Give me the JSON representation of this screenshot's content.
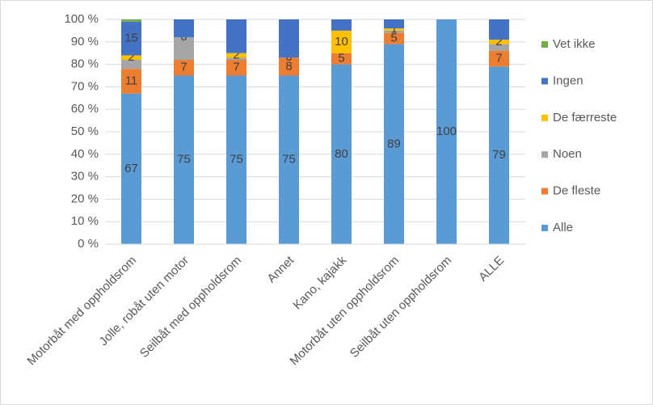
{
  "chart_data": {
    "type": "stacked_bar",
    "categories": [
      "Motorbåt med oppholdsrom",
      "Jolle, robåt uten motor",
      "Seilbåt med oppholdsrom",
      "Annet",
      "Kano, kajakk",
      "Motorbåt uten oppholdsrom",
      "Seilbåt uten oppholdsrom",
      "ALLE"
    ],
    "series": [
      {
        "name": "Alle",
        "color": "#5b9bd5",
        "values": [
          67,
          75,
          75,
          75,
          80,
          89,
          100,
          79
        ],
        "value_labels": [
          "67",
          "75",
          "75",
          "75",
          "80",
          "89",
          "100",
          "79"
        ]
      },
      {
        "name": "De fleste",
        "color": "#ed7d31",
        "values": [
          11,
          7,
          7,
          8,
          5,
          5,
          0,
          7
        ],
        "value_labels": [
          "11",
          "7",
          "7",
          "8",
          "5",
          "5",
          null,
          "7"
        ]
      },
      {
        "name": "Noen",
        "color": "#a5a5a5",
        "values": [
          4,
          10,
          1,
          0,
          0,
          1,
          0,
          3
        ],
        "value_labels": [
          null,
          null,
          null,
          null,
          null,
          null,
          null,
          null
        ]
      },
      {
        "name": "De færreste",
        "color": "#ffc000",
        "values": [
          2,
          0,
          2,
          0,
          10,
          1,
          0,
          2
        ],
        "value_labels": [
          "2",
          "0",
          "2",
          "0",
          "10",
          "1",
          null,
          "2"
        ]
      },
      {
        "name": "Ingen",
        "color": "#4472c4",
        "values": [
          15,
          8,
          15,
          17,
          5,
          4,
          0,
          9
        ],
        "value_labels": [
          "15",
          null,
          null,
          null,
          null,
          null,
          null,
          null
        ]
      },
      {
        "name": "Vet ikke",
        "color": "#70ad47",
        "values": [
          1,
          0,
          0,
          0,
          0,
          0,
          0,
          0
        ],
        "value_labels": [
          null,
          null,
          null,
          null,
          null,
          null,
          null,
          null
        ]
      }
    ],
    "ylim": [
      0,
      100
    ],
    "yticks": [
      {
        "value": 0,
        "label": "0 %"
      },
      {
        "value": 10,
        "label": "10 %"
      },
      {
        "value": 20,
        "label": "20 %"
      },
      {
        "value": 30,
        "label": "30 %"
      },
      {
        "value": 40,
        "label": "40 %"
      },
      {
        "value": 50,
        "label": "50 %"
      },
      {
        "value": 60,
        "label": "60 %"
      },
      {
        "value": 70,
        "label": "70 %"
      },
      {
        "value": 80,
        "label": "80 %"
      },
      {
        "value": 90,
        "label": "90 %"
      },
      {
        "value": 100,
        "label": "100 %"
      }
    ],
    "grid": true,
    "legend": "right"
  }
}
